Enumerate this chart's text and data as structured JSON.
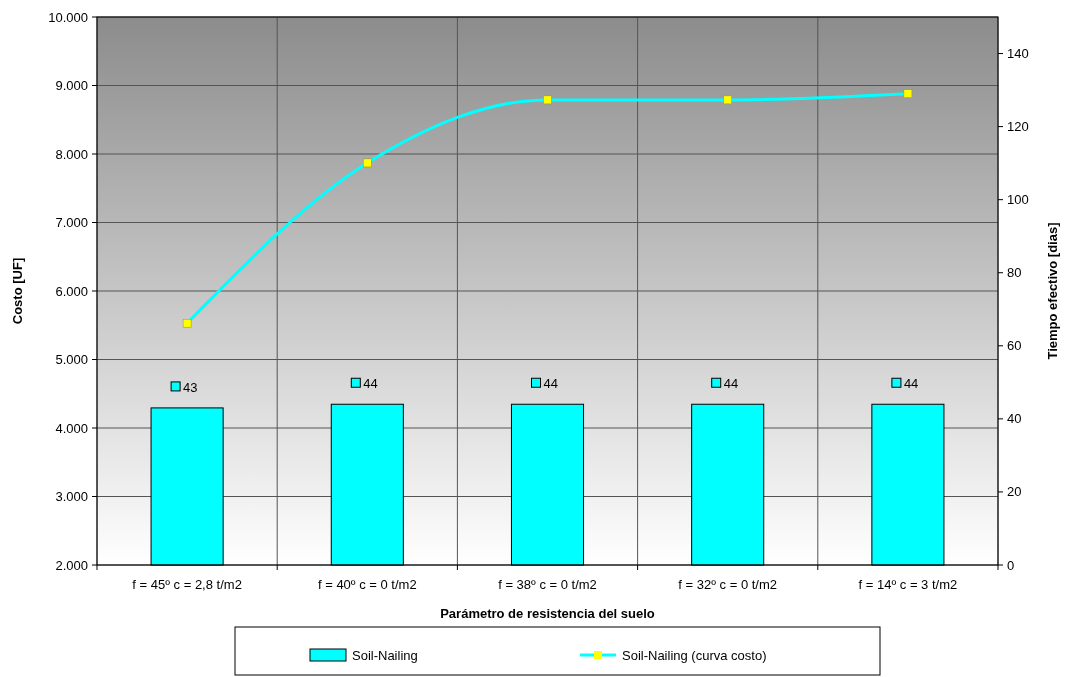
{
  "chart_data": {
    "type": "bar",
    "xlabel": "Parámetro de resistencia del suelo",
    "ylabel": "Costo [UF]",
    "y2label": "Tiempo efectivo [dias]",
    "categories": [
      "f = 45º c = 2,8 t/m2",
      "f = 40º c = 0 t/m2",
      "f = 38º c = 0 t/m2",
      "f = 32º c = 0 t/m2",
      "f = 14º c = 3 t/m2"
    ],
    "series": [
      {
        "name": "Soil-Nailing",
        "color": "#00ffff",
        "axis": "y2",
        "values": [
          43,
          44,
          44,
          44,
          44
        ],
        "data_labels": true
      },
      {
        "type": "line",
        "name": "Soil-Nailing (curva costo)",
        "color": "#00ffff",
        "marker": "square",
        "values": [
          5530,
          7870,
          8790,
          8790,
          8880
        ]
      }
    ],
    "ylim": [
      2000,
      10000
    ],
    "yticks": [
      {
        "value": 2000,
        "label": "2.000"
      },
      {
        "value": 3000,
        "label": "3.000"
      },
      {
        "value": 4000,
        "label": "4.000"
      },
      {
        "value": 5000,
        "label": "5.000"
      },
      {
        "value": 6000,
        "label": "6.000"
      },
      {
        "value": 7000,
        "label": "7.000"
      },
      {
        "value": 8000,
        "label": "8.000"
      },
      {
        "value": 9000,
        "label": "9.000"
      },
      {
        "value": 10000,
        "label": "10.000"
      }
    ],
    "y2lim": [
      0,
      150
    ],
    "y2ticks": [
      0,
      20,
      40,
      60,
      80,
      100,
      120,
      140
    ],
    "grid": true,
    "legend": "bottom"
  }
}
